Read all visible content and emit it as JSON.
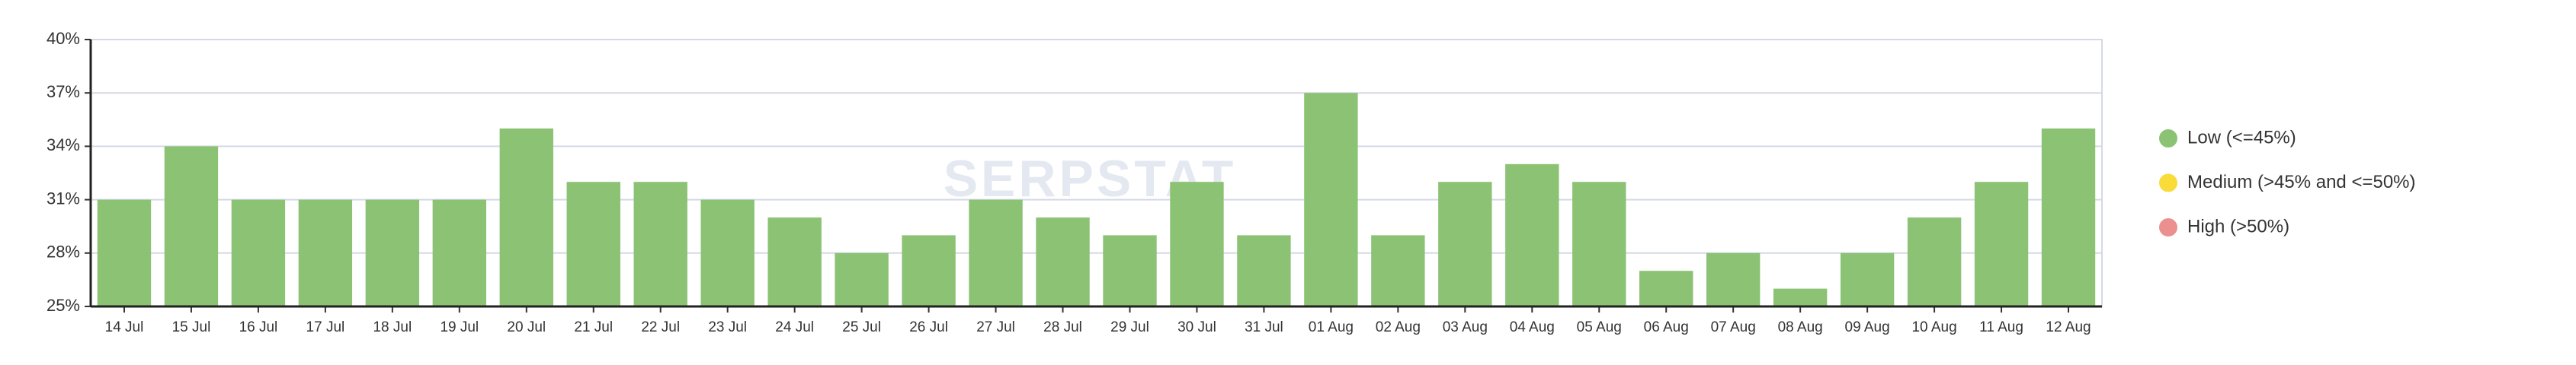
{
  "chart_data": {
    "type": "bar",
    "watermark": "SERPSTAT",
    "categories": [
      "14 Jul",
      "15 Jul",
      "16 Jul",
      "17 Jul",
      "18 Jul",
      "19 Jul",
      "20 Jul",
      "21 Jul",
      "22 Jul",
      "23 Jul",
      "24 Jul",
      "25 Jul",
      "26 Jul",
      "27 Jul",
      "28 Jul",
      "29 Jul",
      "30 Jul",
      "31 Jul",
      "01 Aug",
      "02 Aug",
      "03 Aug",
      "04 Aug",
      "05 Aug",
      "06 Aug",
      "07 Aug",
      "08 Aug",
      "09 Aug",
      "10 Aug",
      "11 Aug",
      "12 Aug"
    ],
    "series": [
      {
        "name": "Low (<=45%)",
        "color": "#8bc273",
        "values": [
          31,
          34,
          31,
          31,
          31,
          31,
          35,
          32,
          32,
          31,
          30,
          28,
          29,
          31,
          30,
          29,
          32,
          29,
          37,
          29,
          32,
          33,
          32,
          27,
          28,
          26,
          28,
          30,
          32,
          35
        ]
      },
      {
        "name": "Medium (>45% and <=50%)",
        "color": "#f9dc3a"
      },
      {
        "name": "High (>50%)",
        "color": "#ec8f8f"
      }
    ],
    "ylim": [
      25,
      40
    ],
    "yticks": [
      {
        "value": 25,
        "label": "25%"
      },
      {
        "value": 28,
        "label": "28%"
      },
      {
        "value": 31,
        "label": "31%"
      },
      {
        "value": 34,
        "label": "34%"
      },
      {
        "value": 37,
        "label": "37%"
      },
      {
        "value": 40,
        "label": "40%"
      }
    ],
    "grid": true
  }
}
